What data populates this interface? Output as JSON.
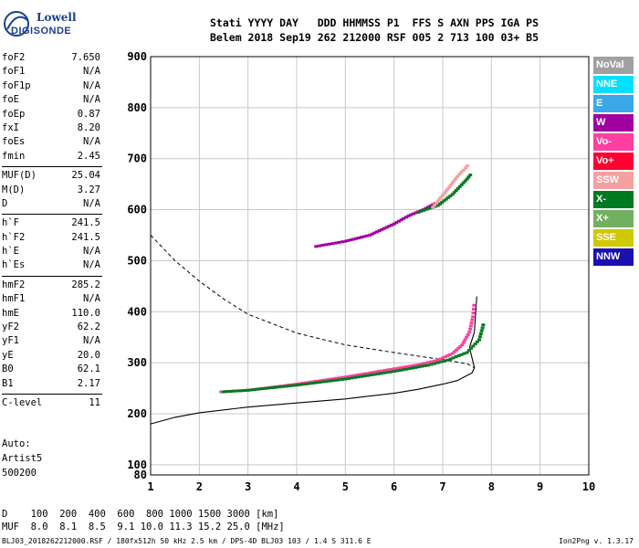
{
  "header": {
    "row1": "Stati YYYY DAY   DDD HHMMSS P1  FFS S AXN PPS IGA PS",
    "row2": "Belem 2018 Sep19 262 212000 RSF 005 2 713 100 03+ B5"
  },
  "logo": {
    "line1": "Lowell",
    "line2": "DIGISONDE"
  },
  "params": [
    {
      "k": "foF2",
      "v": "7.650"
    },
    {
      "k": "foF1",
      "v": "N/A"
    },
    {
      "k": "foF1p",
      "v": "N/A"
    },
    {
      "k": "foE",
      "v": "N/A"
    },
    {
      "k": "foEp",
      "v": "0.87"
    },
    {
      "k": "fxI",
      "v": "8.20"
    },
    {
      "k": "foEs",
      "v": "N/A"
    },
    {
      "k": "fmin",
      "v": "2.45"
    },
    {
      "k": "MUF(D)",
      "v": "25.04",
      "sep": true
    },
    {
      "k": "M(D)",
      "v": "3.27"
    },
    {
      "k": "D",
      "v": "N/A"
    },
    {
      "k": "h`F",
      "v": "241.5",
      "sep": true
    },
    {
      "k": "h`F2",
      "v": "241.5"
    },
    {
      "k": "h`E",
      "v": "N/A"
    },
    {
      "k": "h`Es",
      "v": "N/A"
    },
    {
      "k": "hmF2",
      "v": "285.2",
      "sep": true
    },
    {
      "k": "hmF1",
      "v": "N/A"
    },
    {
      "k": "hmE",
      "v": "110.0"
    },
    {
      "k": "yF2",
      "v": "62.2"
    },
    {
      "k": "yF1",
      "v": "N/A"
    },
    {
      "k": "yE",
      "v": "20.0"
    },
    {
      "k": "B0",
      "v": "62.1"
    },
    {
      "k": "B1",
      "v": "2.17"
    },
    {
      "k": "C-level",
      "v": "11",
      "sep": true
    }
  ],
  "auto": [
    "Auto:",
    "Artist5",
    "500200"
  ],
  "legend": [
    {
      "label": "NoVal",
      "color": "#a0a0a0"
    },
    {
      "label": "NNE",
      "color": "#00e0ff"
    },
    {
      "label": "E",
      "color": "#3aa7e8"
    },
    {
      "label": "W",
      "color": "#a000a0"
    },
    {
      "label": "Vo-",
      "color": "#ff40a0"
    },
    {
      "label": "Vo+",
      "color": "#ff0030"
    },
    {
      "label": "SSW",
      "color": "#f4a0a0"
    },
    {
      "label": "X-",
      "color": "#007a20"
    },
    {
      "label": "X+",
      "color": "#70b060"
    },
    {
      "label": "SSE",
      "color": "#d0c800"
    },
    {
      "label": "NNW",
      "color": "#1a10b0"
    }
  ],
  "footer": {
    "row1": "D    100  200  400  600  800 1000 1500 3000 [km]",
    "row2": "MUF  8.0  8.1  8.5  9.1 10.0 11.3 15.2 25.0 [MHz]",
    "info": "BLJ03_2018262212000.RSF / 180fx512h 50 kHz 2.5 km / DPS-4D BLJ03 103 / 1.4 S 311.6 E",
    "version": "Ion2Png v. 1.3.17"
  },
  "chart_data": {
    "type": "scatter",
    "xlim": [
      1,
      10
    ],
    "ylim": [
      80,
      900
    ],
    "x_ticks": [
      1,
      2,
      3,
      4,
      5,
      6,
      7,
      8,
      9,
      10
    ],
    "y_ticks": [
      80,
      100,
      200,
      300,
      400,
      500,
      600,
      700,
      800,
      900
    ],
    "grid": true,
    "series": [
      {
        "name": "Vo-",
        "color": "#ff40a0",
        "points": [
          [
            2.45,
            243
          ],
          [
            3,
            246
          ],
          [
            3.5,
            252
          ],
          [
            4,
            258
          ],
          [
            4.5,
            265
          ],
          [
            5,
            272
          ],
          [
            5.5,
            280
          ],
          [
            6,
            288
          ],
          [
            6.5,
            296
          ],
          [
            6.9,
            305
          ],
          [
            7.2,
            318
          ],
          [
            7.4,
            335
          ],
          [
            7.55,
            360
          ],
          [
            7.62,
            390
          ],
          [
            7.65,
            420
          ]
        ]
      },
      {
        "name": "X-",
        "color": "#007a20",
        "points": [
          [
            2.5,
            243
          ],
          [
            3,
            246
          ],
          [
            4,
            256
          ],
          [
            5,
            268
          ],
          [
            6,
            283
          ],
          [
            6.7,
            295
          ],
          [
            7.1,
            305
          ],
          [
            7.5,
            320
          ],
          [
            7.75,
            345
          ],
          [
            7.85,
            380
          ]
        ]
      },
      {
        "name": "W",
        "color": "#a000a0",
        "points": [
          [
            4.4,
            528
          ],
          [
            5,
            538
          ],
          [
            5.5,
            550
          ],
          [
            6,
            572
          ],
          [
            6.3,
            588
          ],
          [
            6.6,
            600
          ],
          [
            6.9,
            615
          ]
        ]
      },
      {
        "name": "X-",
        "color": "#007a20",
        "points": [
          [
            6.5,
            595
          ],
          [
            6.9,
            608
          ],
          [
            7.2,
            630
          ],
          [
            7.5,
            660
          ],
          [
            7.6,
            672
          ]
        ]
      },
      {
        "name": "SSW",
        "color": "#f4a0a0",
        "points": [
          [
            6.8,
            605
          ],
          [
            7.1,
            640
          ],
          [
            7.3,
            665
          ],
          [
            7.55,
            690
          ]
        ]
      }
    ],
    "profile_solid": [
      [
        1,
        180
      ],
      [
        1.5,
        193
      ],
      [
        2,
        202
      ],
      [
        3,
        213
      ],
      [
        4,
        221
      ],
      [
        5,
        229
      ],
      [
        6,
        240
      ],
      [
        6.5,
        248
      ],
      [
        7,
        258
      ],
      [
        7.3,
        265
      ],
      [
        7.6,
        280
      ],
      [
        7.65,
        290
      ],
      [
        7.55,
        330
      ],
      [
        7.65,
        360
      ],
      [
        7.7,
        430
      ]
    ],
    "profile_dashed": [
      [
        1,
        550
      ],
      [
        1.5,
        500
      ],
      [
        2,
        460
      ],
      [
        2.5,
        425
      ],
      [
        3,
        395
      ],
      [
        4,
        358
      ],
      [
        5,
        335
      ],
      [
        6,
        320
      ],
      [
        7,
        306
      ],
      [
        7.5,
        298
      ],
      [
        7.65,
        290
      ]
    ]
  }
}
